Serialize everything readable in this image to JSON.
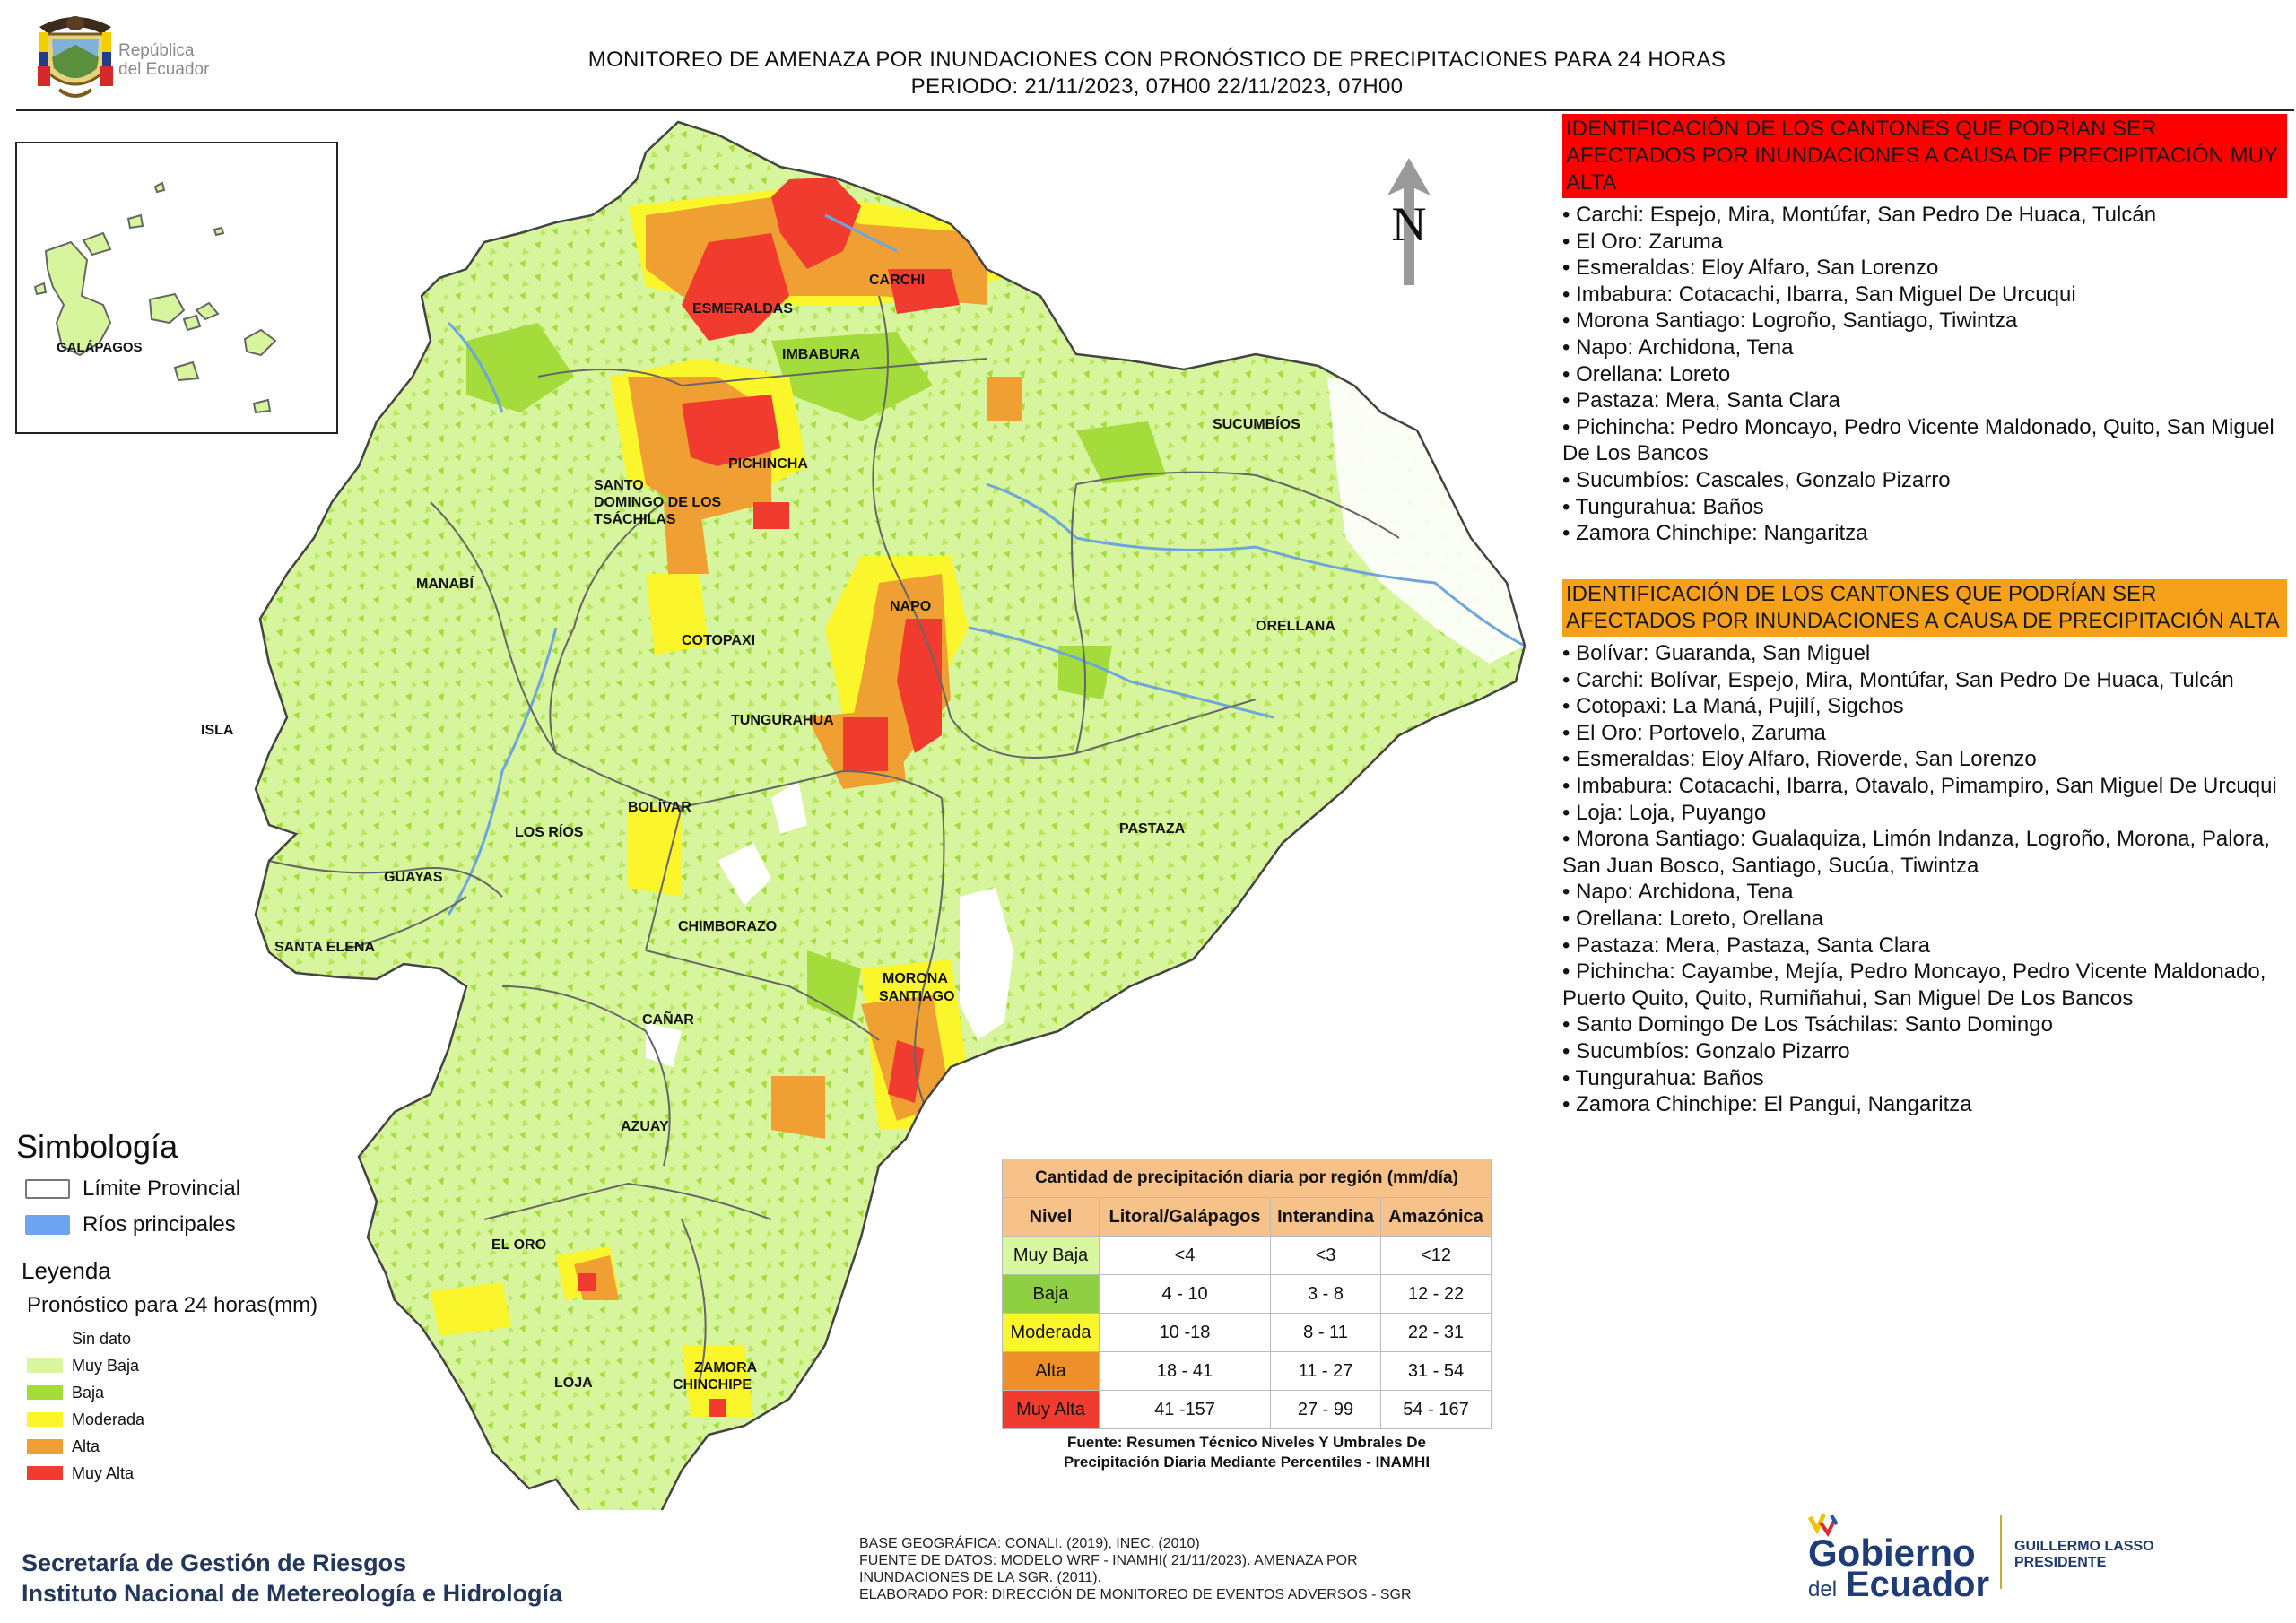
{
  "header": {
    "republic_line1": "República",
    "republic_line2": "del Ecuador",
    "title_line1": "MONITOREO DE AMENAZA POR INUNDACIONES  CON PRONÓSTICO DE  PRECIPITACIONES PARA 24 HORAS",
    "title_line2": "PERIODO: 21/11/2023, 07H00 22/11/2023, 07H00"
  },
  "map": {
    "north_label": "N",
    "inset_label": "GALÁPAGOS",
    "province_labels": {
      "esmeraldas": "ESMERALDAS",
      "carchi": "CARCHI",
      "imbabura": "IMBABURA",
      "sucumbios": "SUCUMBÍOS",
      "pichincha": "PICHINCHA",
      "santo_domingo_1": "SANTO",
      "santo_domingo_2": "DOMINGO DE LOS",
      "santo_domingo_3": "TSÁCHILAS",
      "manabi": "MANABÍ",
      "napo": "NAPO",
      "orellana": "ORELLANA",
      "cotopaxi": "COTOPAXI",
      "isla": "ISLA",
      "tungurahua": "TUNGURAHUA",
      "bolivar": "BOLÍVAR",
      "pastaza": "PASTAZA",
      "los_rios": "LOS RÍOS",
      "guayas": "GUAYAS",
      "chimborazo": "CHIMBORAZO",
      "santa_elena": "SANTA ELENA",
      "morona_1": "MORONA",
      "morona_2": "SANTIAGO",
      "canar": "CAÑAR",
      "azuay": "AZUAY",
      "el_oro": "EL ORO",
      "loja": "LOJA",
      "zamora_1": "ZAMORA",
      "zamora_2": "CHINCHIPE"
    }
  },
  "panel_muy_alta": {
    "heading": "IDENTIFICACIÓN DE LOS CANTONES QUE PODRÍAN SER AFECTADOS POR INUNDACIONES  A CAUSA DE PRECIPITACIÓN MUY ALTA",
    "items": [
      "• Carchi: Espejo, Mira, Montúfar, San Pedro De Huaca, Tulcán",
      "• El Oro: Zaruma",
      "• Esmeraldas: Eloy Alfaro, San Lorenzo",
      "• Imbabura: Cotacachi, Ibarra, San Miguel De Urcuqui",
      "• Morona Santiago: Logroño, Santiago, Tiwintza",
      "• Napo: Archidona, Tena",
      "• Orellana: Loreto",
      "• Pastaza: Mera, Santa Clara",
      "• Pichincha: Pedro Moncayo, Pedro Vicente Maldonado, Quito, San Miguel De Los Bancos",
      "• Sucumbíos: Cascales, Gonzalo Pizarro",
      "• Tungurahua: Baños",
      "• Zamora Chinchipe: Nangaritza"
    ]
  },
  "panel_alta": {
    "heading": "IDENTIFICACIÓN DE LOS CANTONES QUE  PODRÍAN SER AFECTADOS POR INUNDACIONES  A CAUSA DE PRECIPITACIÓN ALTA",
    "items": [
      "• Bolívar: Guaranda, San Miguel",
      "• Carchi: Bolívar, Espejo, Mira, Montúfar, San Pedro De Huaca, Tulcán",
      "• Cotopaxi: La Maná, Pujilí, Sigchos",
      "• El Oro: Portovelo, Zaruma",
      "• Esmeraldas: Eloy Alfaro, Rioverde, San Lorenzo",
      "• Imbabura: Cotacachi, Ibarra, Otavalo, Pimampiro, San Miguel De Urcuqui",
      "• Loja: Loja, Puyango",
      "• Morona Santiago: Gualaquiza, Limón Indanza, Logroño, Morona, Palora, San Juan Bosco, Santiago, Sucúa, Tiwintza",
      "• Napo: Archidona, Tena",
      "• Orellana: Loreto, Orellana",
      "• Pastaza: Mera, Pastaza, Santa Clara",
      "• Pichincha: Cayambe, Mejía, Pedro Moncayo, Pedro Vicente Maldonado, Puerto Quito, Quito, Rumiñahui, San Miguel De Los Bancos",
      "• Santo Domingo De Los Tsáchilas: Santo Domingo",
      "• Sucumbíos: Gonzalo Pizarro",
      "• Tungurahua: Baños",
      "• Zamora Chinchipe: El Pangui, Nangaritza"
    ]
  },
  "simbologia": {
    "title": "Simbología",
    "limite": "Límite Provincial",
    "rios": "Ríos principales"
  },
  "leyenda": {
    "title": "Leyenda",
    "subtitle": "Pronóstico para 24 horas(mm)",
    "items": [
      {
        "label": "Sin dato",
        "color": "#ffffff"
      },
      {
        "label": "Muy Baja",
        "color": "#d9f7a0"
      },
      {
        "label": "Baja",
        "color": "#a6dc3a"
      },
      {
        "label": "Moderada",
        "color": "#fbf52b"
      },
      {
        "label": "Alta",
        "color": "#f0a033"
      },
      {
        "label": "Muy Alta",
        "color": "#f23b2f"
      }
    ]
  },
  "rain_table": {
    "title": "Cantidad de precipitación diaria por región (mm/día)",
    "headers": [
      "Nivel",
      "Litoral/Galápagos",
      "Interandina",
      "Amazónica"
    ],
    "rows": [
      {
        "nivel": "Muy Baja",
        "color": "#d9f7a0",
        "litoral": "<4",
        "interandina": "<3",
        "amazonica": "<12"
      },
      {
        "nivel": "Baja",
        "color": "#8fcf43",
        "litoral": "4 - 10",
        "interandina": "3 - 8",
        "amazonica": "12 - 22"
      },
      {
        "nivel": "Moderada",
        "color": "#fbf52b",
        "litoral": "10 -18",
        "interandina": "8 - 11",
        "amazonica": "22 - 31"
      },
      {
        "nivel": "Alta",
        "color": "#ef8f2a",
        "litoral": "18 - 41",
        "interandina": "11 - 27",
        "amazonica": "31 - 54"
      },
      {
        "nivel": "Muy Alta",
        "color": "#f23b2f",
        "litoral": "41 -157",
        "interandina": "27 - 99",
        "amazonica": "54 - 167"
      }
    ],
    "fuente_line1": "Fuente: Resumen Técnico Niveles Y Umbrales De",
    "fuente_line2": "Precipitación Diaria Mediante Percentiles - INAMHI"
  },
  "footer": {
    "sgr_line1": "Secretaría de Gestión de Riesgos",
    "sgr_line2": "Instituto Nacional de Metereología e Hidrología",
    "base_line1": "BASE GEOGRÁFICA: CONALI. (2019), INEC. (2010)",
    "base_line2": "FUENTE DE DATOS: MODELO WRF - INAMHI( 21/11/2023).  AMENAZA POR",
    "base_line3": "INUNDACIONES DE LA SGR. (2011).",
    "base_line4": "ELABORADO POR: DIRECCIÓN DE MONITOREO DE EVENTOS ADVERSOS - SGR",
    "gobierno_word": "Gobierno",
    "del_word": "del",
    "ecuador_word": "Ecuador",
    "president_name": "GUILLERMO LASSO",
    "president_title": "PRESIDENTE"
  }
}
